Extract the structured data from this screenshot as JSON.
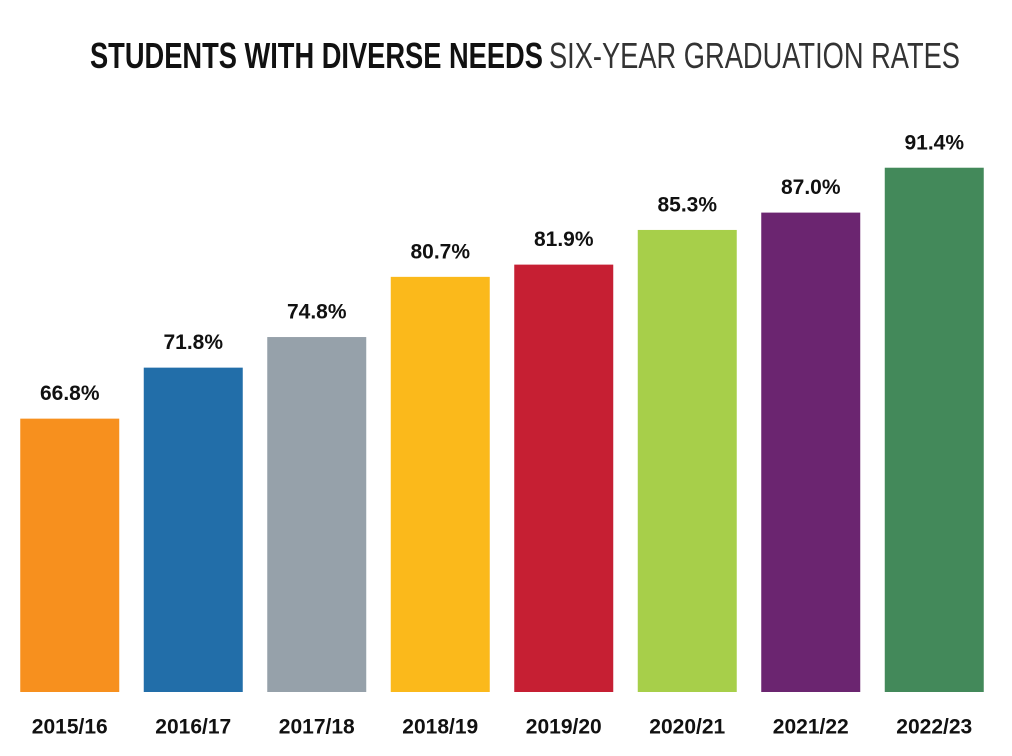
{
  "chart_data": {
    "type": "bar",
    "title": "STUDENTS WITH DIVERSE NEEDS",
    "subtitle": "SIX-YEAR GRADUATION RATES",
    "categories": [
      "2015/16",
      "2016/17",
      "2017/18",
      "2018/19",
      "2019/20",
      "2020/21",
      "2021/22",
      "2022/23"
    ],
    "values": [
      66.8,
      71.8,
      74.8,
      80.7,
      81.9,
      85.3,
      87.0,
      91.4
    ],
    "value_labels": [
      "66.8%",
      "71.8%",
      "74.8%",
      "80.7%",
      "81.9%",
      "85.3%",
      "87.0%",
      "91.4%"
    ],
    "colors": [
      "#f7901e",
      "#226ea9",
      "#96a1aa",
      "#fbb91b",
      "#c61f33",
      "#a7cf4a",
      "#6b2570",
      "#43895a"
    ],
    "ylim": [
      40,
      95
    ],
    "grid": false
  }
}
